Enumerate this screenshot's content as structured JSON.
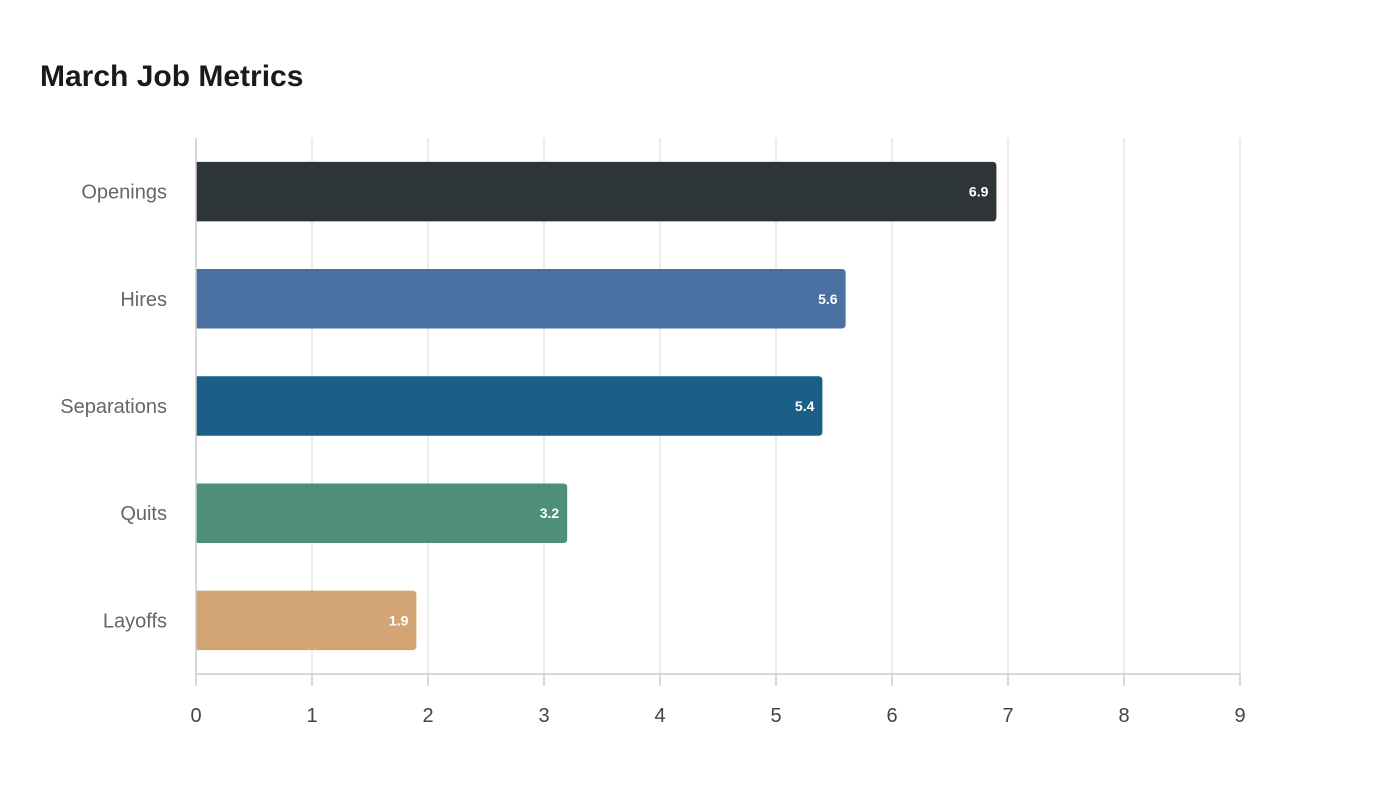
{
  "chart_data": {
    "type": "bar",
    "orientation": "horizontal",
    "title": "March Job Metrics",
    "xlabel": "",
    "ylabel": "",
    "categories": [
      "Openings",
      "Hires",
      "Separations",
      "Quits",
      "Layoffs"
    ],
    "values": [
      6.9,
      5.6,
      5.4,
      3.2,
      1.9
    ],
    "colors": [
      "#2e3538",
      "#4a6fa1",
      "#195f87",
      "#4f8e7b",
      "#d4a574"
    ],
    "xlim": [
      0,
      9
    ],
    "xticks": [
      "0",
      "1",
      "2",
      "3",
      "4",
      "5",
      "6",
      "7",
      "8",
      "9"
    ],
    "grid": "vertical",
    "legend": "none"
  }
}
